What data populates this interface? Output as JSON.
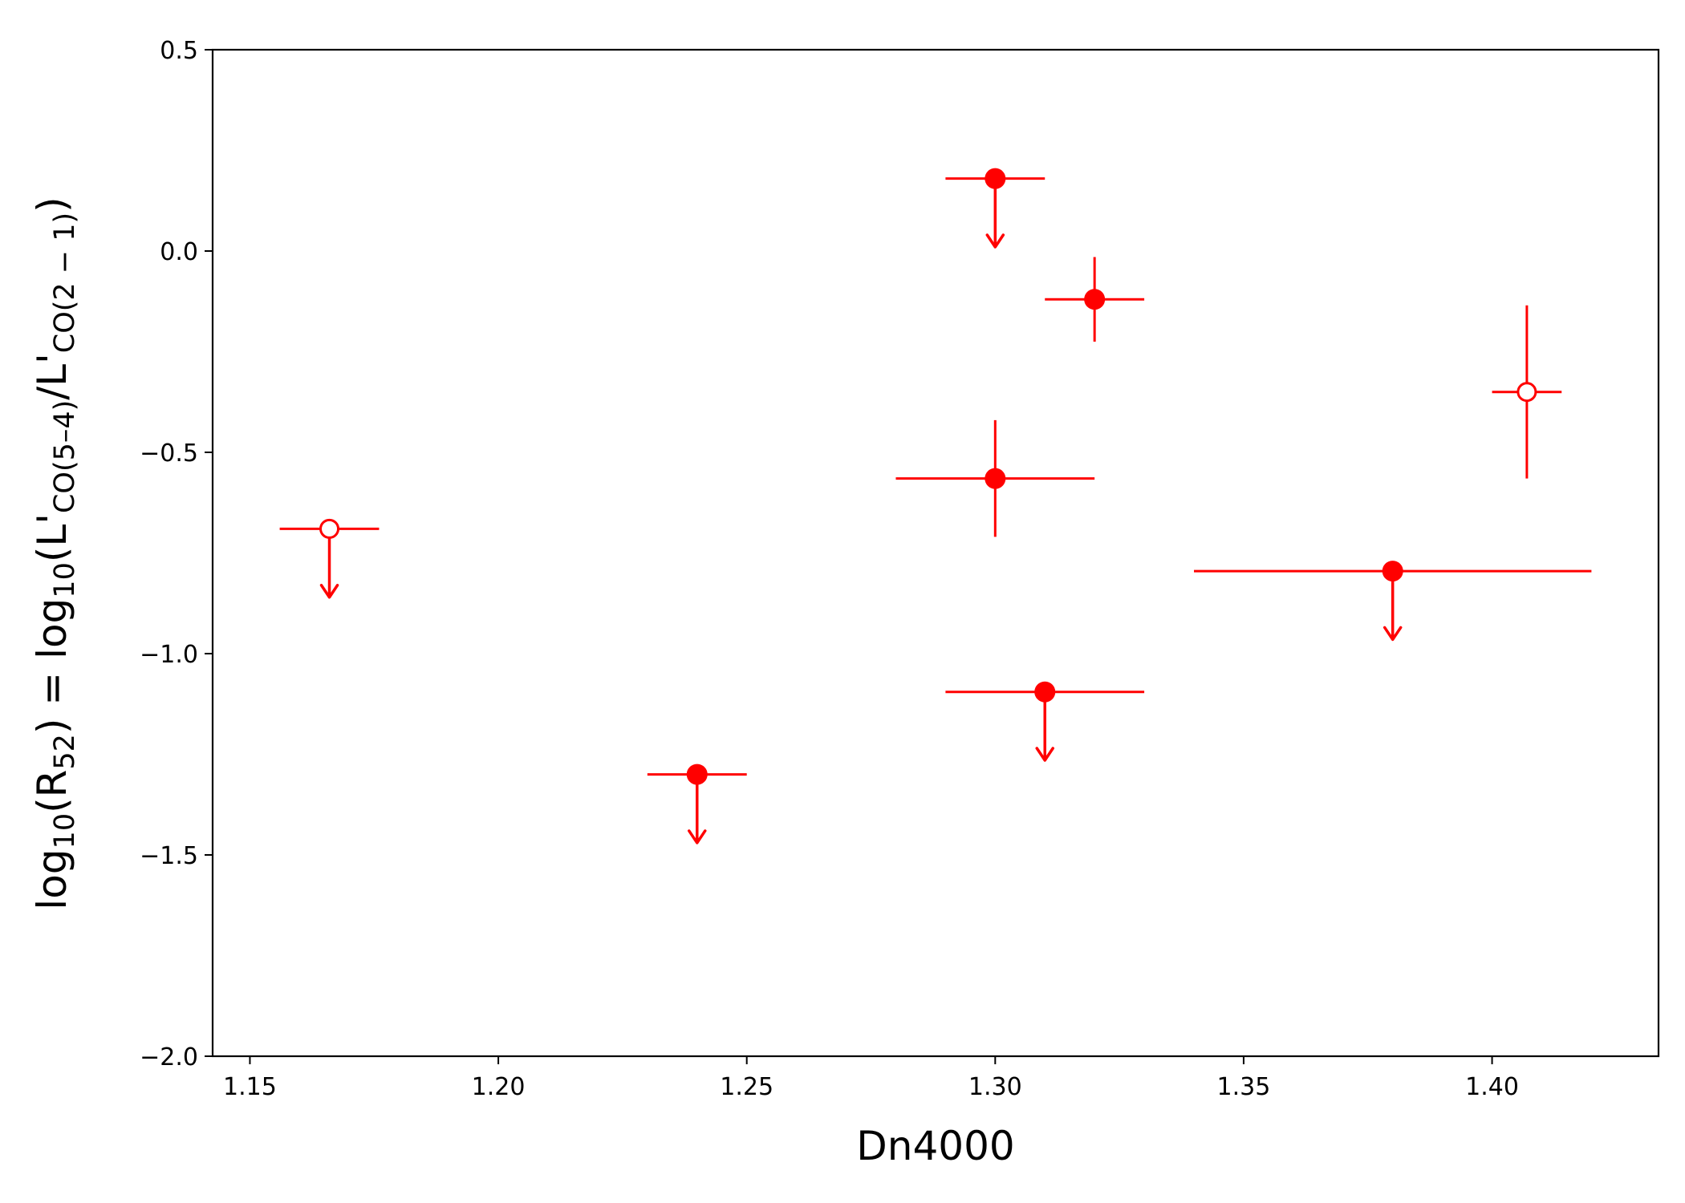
{
  "chart_data": {
    "type": "scatter",
    "title": "",
    "xlabel": "Dn4000",
    "ylabel": {
      "prefix": "log",
      "sub1": "10",
      "r_open": "(R",
      "sub2": "52",
      "r_close": ") = log",
      "sub3": "10",
      "l1": "(L'",
      "sub4": "CO(5–4)",
      "l2": "/L'",
      "sub5": "CO(2 − 1)",
      "end": ")"
    },
    "xlim": [
      1.1425,
      1.4335
    ],
    "ylim": [
      -2.0,
      0.5
    ],
    "xticks": [
      1.15,
      1.2,
      1.25,
      1.3,
      1.35,
      1.4
    ],
    "xtick_labels": [
      "1.15",
      "1.20",
      "1.25",
      "1.30",
      "1.35",
      "1.40"
    ],
    "yticks": [
      0.5,
      0.0,
      -0.5,
      -1.0,
      -1.5,
      -2.0
    ],
    "ytick_labels": [
      "0.5",
      "0.0",
      "−0.5",
      "−1.0",
      "−1.5",
      "−2.0"
    ],
    "grid": false,
    "color": "#ff0000",
    "points": [
      {
        "x": 1.166,
        "y": -0.69,
        "xerr": 0.01,
        "yerr": null,
        "upper_limit": true,
        "filled": false
      },
      {
        "x": 1.24,
        "y": -1.3,
        "xerr": 0.01,
        "yerr": null,
        "upper_limit": true,
        "filled": true
      },
      {
        "x": 1.3,
        "y": 0.18,
        "xerr": 0.01,
        "yerr": null,
        "upper_limit": true,
        "filled": true
      },
      {
        "x": 1.32,
        "y": -0.12,
        "xerr": 0.01,
        "yerr": [
          0.105,
          0.105
        ],
        "upper_limit": false,
        "filled": true
      },
      {
        "x": 1.3,
        "y": -0.565,
        "xerr": 0.02,
        "yerr": [
          0.145,
          0.145
        ],
        "upper_limit": false,
        "filled": true
      },
      {
        "x": 1.31,
        "y": -1.095,
        "xerr": 0.02,
        "yerr": null,
        "upper_limit": true,
        "filled": true
      },
      {
        "x": 1.38,
        "y": -0.795,
        "xerr": 0.04,
        "yerr": null,
        "upper_limit": true,
        "filled": true
      },
      {
        "x": 1.407,
        "y": -0.35,
        "xerr": 0.007,
        "yerr": [
          0.215,
          0.215
        ],
        "upper_limit": false,
        "filled": false
      }
    ]
  }
}
